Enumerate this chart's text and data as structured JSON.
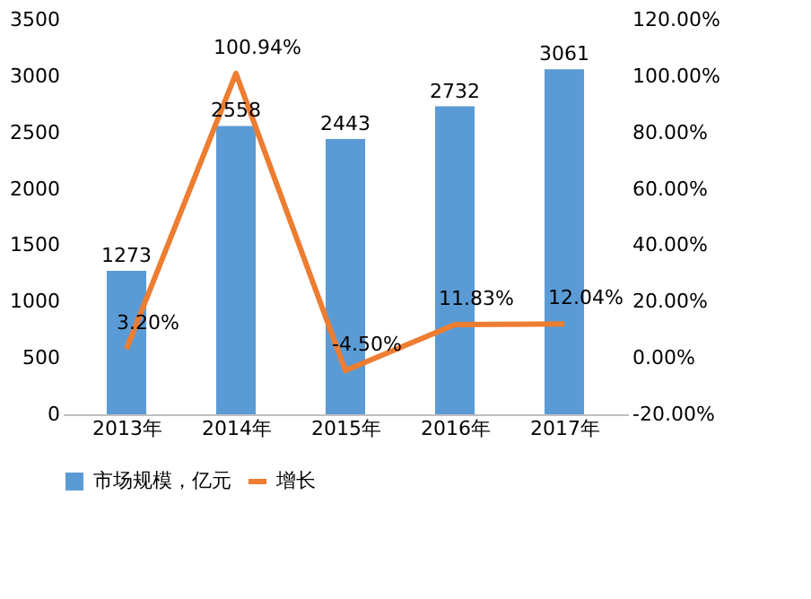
{
  "chart_data": {
    "type": "bar",
    "categories": [
      "2013年",
      "2014年",
      "2015年",
      "2016年",
      "2017年"
    ],
    "series": [
      {
        "name": "市场规模，亿元",
        "type": "bar",
        "color": "#5b9bd5",
        "values": [
          1273,
          2558,
          2443,
          2732,
          3061
        ],
        "value_labels": [
          "1273",
          "2558",
          "2443",
          "2732",
          "3061"
        ]
      },
      {
        "name": "增长",
        "type": "line",
        "axis": "y2",
        "color": "#ed7d31",
        "values": [
          3.2,
          100.94,
          -4.5,
          11.83,
          12.04
        ],
        "value_labels": [
          "3.20%",
          "100.94%",
          "-4.50%",
          "11.83%",
          "12.04%"
        ]
      }
    ],
    "ylim": [
      0,
      3500
    ],
    "yticks": [
      0,
      500,
      1000,
      1500,
      2000,
      2500,
      3000,
      3500
    ],
    "y2lim": [
      -20,
      120
    ],
    "y2ticks": [
      {
        "value": -20,
        "label": "-20.00%"
      },
      {
        "value": 0,
        "label": "0.00%"
      },
      {
        "value": 20,
        "label": "20.00%"
      },
      {
        "value": 40,
        "label": "40.00%"
      },
      {
        "value": 60,
        "label": "60.00%"
      },
      {
        "value": 80,
        "label": "80.00%"
      },
      {
        "value": 100,
        "label": "100.00%"
      },
      {
        "value": 120,
        "label": "120.00%"
      }
    ],
    "grid": false,
    "legend": "bottom",
    "marker": "none",
    "line_style": "solid"
  }
}
